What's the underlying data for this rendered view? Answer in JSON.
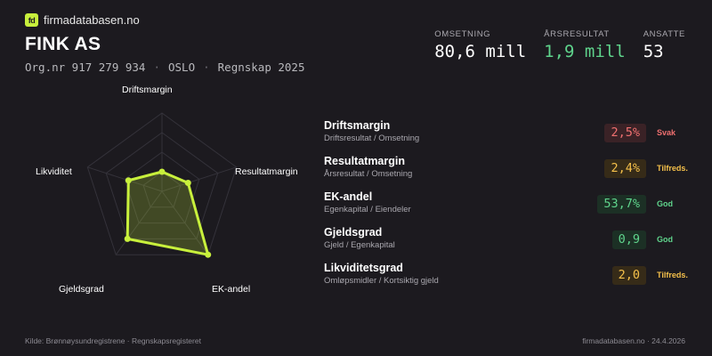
{
  "brand": {
    "logo": "fd",
    "name": "firmadatabasen.no"
  },
  "company": {
    "name": "FINK AS",
    "orgnr": "Org.nr 917 279 934",
    "city": "OSLO",
    "period": "Regnskap 2025"
  },
  "kpis": [
    {
      "label": "OMSETNING",
      "value": "80,6 mill",
      "color": "#ffffff"
    },
    {
      "label": "ÅRSRESULTAT",
      "value": "1,9 mill",
      "color": "#5fd48c"
    },
    {
      "label": "ANSATTE",
      "value": "53",
      "color": "#ffffff"
    }
  ],
  "chart_data": {
    "type": "radar",
    "axes": [
      "Driftsmargin",
      "Resultatmargin",
      "EK-andel",
      "Gjeldsgrad",
      "Likviditet"
    ],
    "values": [
      0.25,
      0.35,
      1.0,
      0.75,
      0.45
    ],
    "colors": {
      "line": "#c8f03c",
      "fill": "#c8f03c",
      "grid": "#34323a"
    }
  },
  "metrics": [
    {
      "name": "Driftsmargin",
      "sub": "Driftsresultat / Omsetning",
      "value": "2,5%",
      "status": "Svak",
      "level": "red"
    },
    {
      "name": "Resultatmargin",
      "sub": "Årsresultat / Omsetning",
      "value": "2,4%",
      "status": "Tilfreds.",
      "level": "yellow"
    },
    {
      "name": "EK-andel",
      "sub": "Egenkapital / Eiendeler",
      "value": "53,7%",
      "status": "God",
      "level": "green"
    },
    {
      "name": "Gjeldsgrad",
      "sub": "Gjeld / Egenkapital",
      "value": "0,9",
      "status": "God",
      "level": "green"
    },
    {
      "name": "Likviditetsgrad",
      "sub": "Omløpsmidler / Kortsiktig gjeld",
      "value": "2,0",
      "status": "Tilfreds.",
      "level": "yellow"
    }
  ],
  "footer": {
    "source": "Kilde: Brønnøysundregistrene · Regnskapsregisteret",
    "site_date": "firmadatabasen.no · 24.4.2026"
  }
}
